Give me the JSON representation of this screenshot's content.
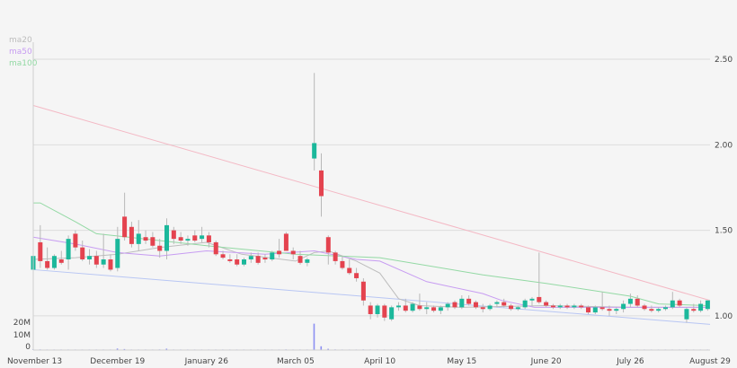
{
  "chart_data": {
    "type": "candlestick",
    "ylim": [
      0.8,
      2.6
    ],
    "y_ticks": [
      "1.00",
      "1.50",
      "2.00",
      "2.50"
    ],
    "y_tick_values": [
      1.0,
      1.5,
      2.0,
      2.5
    ],
    "volume_ticks": [
      "0",
      "10M",
      "20M"
    ],
    "volume_tick_values": [
      0,
      10,
      20
    ],
    "volume_unit": "M",
    "volume_ylim": [
      0,
      25
    ],
    "x_ticks": [
      {
        "label": "November 13",
        "date": "11-13"
      },
      {
        "label": "December 19",
        "date": "12-19"
      },
      {
        "label": "January 26",
        "date": "01-26"
      },
      {
        "label": "March 05",
        "date": "03-05"
      },
      {
        "label": "April 10",
        "date": "04-10"
      },
      {
        "label": "May 15",
        "date": "05-15"
      },
      {
        "label": "June 20",
        "date": "06-20"
      },
      {
        "label": "July 26",
        "date": "07-26"
      },
      {
        "label": "August 29",
        "date": "08-29"
      }
    ],
    "grid": true,
    "legend_position": "top-left",
    "legend": [
      {
        "name": "ma20",
        "color": "#bdbdbd"
      },
      {
        "name": "ma50",
        "color": "#c79cf2"
      },
      {
        "name": "ma100",
        "color": "#93d9a4"
      }
    ],
    "colors": {
      "up": "#1bb89b",
      "down": "#e4434f",
      "wick": "#b8b8b8",
      "volume": "#8c90f2",
      "grid": "#dcdcdc"
    },
    "candle_fields": [
      "date",
      "open",
      "high",
      "low",
      "close",
      "volume_M"
    ],
    "candles": [
      [
        "11-13",
        1.27,
        1.37,
        1.24,
        1.35,
        0.4
      ],
      [
        "11-16",
        1.43,
        1.53,
        1.28,
        1.32,
        0.5
      ],
      [
        "11-19",
        1.32,
        1.4,
        1.27,
        1.28,
        0.3
      ],
      [
        "11-22",
        1.28,
        1.36,
        1.27,
        1.35,
        0.3
      ],
      [
        "11-25",
        1.33,
        1.38,
        1.3,
        1.31,
        0.2
      ],
      [
        "11-28",
        1.33,
        1.47,
        1.27,
        1.45,
        0.4
      ],
      [
        "12-01",
        1.48,
        1.5,
        1.38,
        1.4,
        0.3
      ],
      [
        "12-04",
        1.4,
        1.44,
        1.32,
        1.33,
        0.3
      ],
      [
        "12-07",
        1.33,
        1.39,
        1.3,
        1.35,
        0.2
      ],
      [
        "12-10",
        1.35,
        1.38,
        1.28,
        1.3,
        0.2
      ],
      [
        "12-13",
        1.3,
        1.48,
        1.28,
        1.33,
        0.3
      ],
      [
        "12-16",
        1.33,
        1.36,
        1.26,
        1.27,
        0.3
      ],
      [
        "12-19",
        1.28,
        1.52,
        1.26,
        1.45,
        1.2
      ],
      [
        "12-22",
        1.58,
        1.72,
        1.44,
        1.46,
        0.8
      ],
      [
        "12-25",
        1.52,
        1.55,
        1.4,
        1.42,
        0.4
      ],
      [
        "12-28",
        1.42,
        1.56,
        1.38,
        1.48,
        0.4
      ],
      [
        "12-31",
        1.46,
        1.5,
        1.42,
        1.44,
        0.3
      ],
      [
        "01-03",
        1.46,
        1.49,
        1.4,
        1.41,
        0.3
      ],
      [
        "01-06",
        1.41,
        1.45,
        1.34,
        1.38,
        0.5
      ],
      [
        "01-09",
        1.38,
        1.57,
        1.33,
        1.53,
        1.1
      ],
      [
        "01-12",
        1.5,
        1.52,
        1.42,
        1.45,
        0.4
      ],
      [
        "01-15",
        1.46,
        1.49,
        1.42,
        1.44,
        0.3
      ],
      [
        "01-18",
        1.44,
        1.47,
        1.41,
        1.45,
        0.2
      ],
      [
        "01-21",
        1.47,
        1.5,
        1.43,
        1.44,
        0.3
      ],
      [
        "01-24",
        1.45,
        1.52,
        1.43,
        1.47,
        0.3
      ],
      [
        "01-27",
        1.47,
        1.49,
        1.4,
        1.43,
        0.3
      ],
      [
        "01-30",
        1.43,
        1.44,
        1.35,
        1.36,
        0.3
      ],
      [
        "02-02",
        1.36,
        1.38,
        1.33,
        1.34,
        0.2
      ],
      [
        "02-05",
        1.33,
        1.36,
        1.31,
        1.32,
        0.2
      ],
      [
        "02-08",
        1.33,
        1.36,
        1.29,
        1.3,
        0.3
      ],
      [
        "02-11",
        1.3,
        1.34,
        1.29,
        1.33,
        0.2
      ],
      [
        "02-14",
        1.33,
        1.37,
        1.31,
        1.35,
        0.2
      ],
      [
        "02-17",
        1.35,
        1.37,
        1.3,
        1.31,
        0.2
      ],
      [
        "02-20",
        1.34,
        1.36,
        1.31,
        1.33,
        0.2
      ],
      [
        "02-23",
        1.33,
        1.38,
        1.32,
        1.37,
        0.3
      ],
      [
        "02-26",
        1.38,
        1.45,
        1.34,
        1.36,
        0.3
      ],
      [
        "03-01",
        1.48,
        1.49,
        1.38,
        1.38,
        0.5
      ],
      [
        "03-04",
        1.38,
        1.4,
        1.33,
        1.36,
        0.2
      ],
      [
        "03-07",
        1.35,
        1.38,
        1.3,
        1.31,
        0.2
      ],
      [
        "03-10",
        1.31,
        1.34,
        1.29,
        1.33,
        0.3
      ],
      [
        "03-13",
        1.92,
        2.42,
        1.85,
        2.01,
        21
      ],
      [
        "03-16",
        1.85,
        1.95,
        1.58,
        1.7,
        3
      ],
      [
        "03-19",
        1.46,
        1.47,
        1.3,
        1.37,
        1
      ],
      [
        "03-22",
        1.37,
        1.38,
        1.3,
        1.32,
        0.5
      ],
      [
        "03-25",
        1.32,
        1.35,
        1.27,
        1.28,
        0.4
      ],
      [
        "03-28",
        1.28,
        1.33,
        1.24,
        1.25,
        0.4
      ],
      [
        "03-31",
        1.25,
        1.28,
        1.2,
        1.22,
        0.3
      ],
      [
        "04-03",
        1.2,
        1.22,
        1.06,
        1.09,
        0.5
      ],
      [
        "04-06",
        1.06,
        1.08,
        0.98,
        1.01,
        0.4
      ],
      [
        "04-09",
        1.01,
        1.07,
        0.99,
        1.06,
        0.3
      ],
      [
        "04-12",
        1.06,
        1.07,
        0.97,
        0.99,
        0.4
      ],
      [
        "04-15",
        0.98,
        1.06,
        0.97,
        1.05,
        0.3
      ],
      [
        "04-18",
        1.05,
        1.08,
        1.03,
        1.06,
        0.2
      ],
      [
        "04-21",
        1.06,
        1.1,
        1.02,
        1.03,
        0.2
      ],
      [
        "04-24",
        1.03,
        1.08,
        1.02,
        1.07,
        0.2
      ],
      [
        "04-27",
        1.06,
        1.13,
        1.03,
        1.04,
        0.2
      ],
      [
        "04-30",
        1.04,
        1.08,
        1.01,
        1.05,
        0.2
      ],
      [
        "05-03",
        1.05,
        1.06,
        1.02,
        1.03,
        0.2
      ],
      [
        "05-06",
        1.03,
        1.06,
        1.01,
        1.05,
        0.2
      ],
      [
        "05-09",
        1.05,
        1.08,
        1.03,
        1.07,
        0.2
      ],
      [
        "05-12",
        1.08,
        1.09,
        1.04,
        1.05,
        0.2
      ],
      [
        "05-15",
        1.05,
        1.12,
        1.04,
        1.1,
        0.3
      ],
      [
        "05-18",
        1.1,
        1.12,
        1.06,
        1.07,
        0.2
      ],
      [
        "05-21",
        1.08,
        1.09,
        1.04,
        1.05,
        0.2
      ],
      [
        "05-24",
        1.05,
        1.07,
        1.02,
        1.04,
        0.2
      ],
      [
        "05-27",
        1.04,
        1.07,
        1.03,
        1.06,
        0.2
      ],
      [
        "05-30",
        1.07,
        1.09,
        1.05,
        1.08,
        0.2
      ],
      [
        "06-02",
        1.08,
        1.1,
        1.05,
        1.06,
        0.2
      ],
      [
        "06-05",
        1.06,
        1.07,
        1.03,
        1.04,
        0.2
      ],
      [
        "06-08",
        1.04,
        1.06,
        1.03,
        1.05,
        0.2
      ],
      [
        "06-11",
        1.05,
        1.1,
        1.04,
        1.09,
        0.2
      ],
      [
        "06-14",
        1.09,
        1.11,
        1.06,
        1.1,
        0.3
      ],
      [
        "06-17",
        1.11,
        1.37,
        1.07,
        1.08,
        0.5
      ],
      [
        "06-20",
        1.08,
        1.09,
        1.05,
        1.06,
        0.2
      ],
      [
        "06-23",
        1.06,
        1.07,
        1.04,
        1.05,
        0.2
      ],
      [
        "06-26",
        1.05,
        1.07,
        1.04,
        1.06,
        0.2
      ],
      [
        "06-29",
        1.06,
        1.07,
        1.04,
        1.05,
        0.2
      ],
      [
        "07-02",
        1.05,
        1.07,
        1.04,
        1.06,
        0.2
      ],
      [
        "07-05",
        1.06,
        1.07,
        1.04,
        1.05,
        0.2
      ],
      [
        "07-08",
        1.05,
        1.06,
        1.01,
        1.02,
        0.2
      ],
      [
        "07-11",
        1.02,
        1.06,
        1.01,
        1.05,
        0.2
      ],
      [
        "07-14",
        1.05,
        1.14,
        1.03,
        1.04,
        0.2
      ],
      [
        "07-17",
        1.04,
        1.06,
        1.0,
        1.03,
        0.2
      ],
      [
        "07-20",
        1.03,
        1.05,
        1.01,
        1.04,
        0.2
      ],
      [
        "07-23",
        1.04,
        1.09,
        1.02,
        1.07,
        0.2
      ],
      [
        "07-26",
        1.07,
        1.13,
        1.05,
        1.1,
        0.3
      ],
      [
        "07-29",
        1.1,
        1.12,
        1.05,
        1.06,
        0.2
      ],
      [
        "08-01",
        1.06,
        1.07,
        1.03,
        1.04,
        0.2
      ],
      [
        "08-04",
        1.04,
        1.06,
        1.02,
        1.03,
        0.2
      ],
      [
        "08-07",
        1.03,
        1.05,
        1.02,
        1.04,
        0.2
      ],
      [
        "08-10",
        1.04,
        1.06,
        1.03,
        1.05,
        0.2
      ],
      [
        "08-13",
        1.05,
        1.14,
        1.04,
        1.09,
        0.3
      ],
      [
        "08-16",
        1.09,
        1.1,
        1.05,
        1.06,
        0.2
      ],
      [
        "08-19",
        0.98,
        1.05,
        0.96,
        1.04,
        0.3
      ],
      [
        "08-22",
        1.04,
        1.07,
        1.02,
        1.03,
        0.2
      ],
      [
        "08-25",
        1.03,
        1.09,
        1.02,
        1.07,
        0.2
      ],
      [
        "08-28",
        1.04,
        1.09,
        1.03,
        1.09,
        0.2
      ]
    ],
    "moving_averages": [
      {
        "name": "ma20",
        "points": [
          [
            "11-13",
            1.33
          ],
          [
            "12-01",
            1.34
          ],
          [
            "12-19",
            1.36
          ],
          [
            "01-06",
            1.4
          ],
          [
            "01-26",
            1.43
          ],
          [
            "02-10",
            1.36
          ],
          [
            "03-05",
            1.32
          ],
          [
            "03-13",
            1.37
          ],
          [
            "03-19",
            1.38
          ],
          [
            "03-31",
            1.32
          ],
          [
            "04-10",
            1.25
          ],
          [
            "04-18",
            1.1
          ],
          [
            "04-27",
            1.06
          ],
          [
            "05-15",
            1.05
          ],
          [
            "06-20",
            1.06
          ],
          [
            "07-26",
            1.05
          ],
          [
            "08-28",
            1.05
          ]
        ]
      },
      {
        "name": "ma50",
        "points": [
          [
            "11-13",
            1.46
          ],
          [
            "12-01",
            1.42
          ],
          [
            "12-19",
            1.37
          ],
          [
            "01-06",
            1.35
          ],
          [
            "01-26",
            1.38
          ],
          [
            "02-20",
            1.36
          ],
          [
            "03-13",
            1.38
          ],
          [
            "03-31",
            1.33
          ],
          [
            "04-10",
            1.32
          ],
          [
            "04-30",
            1.2
          ],
          [
            "05-24",
            1.13
          ],
          [
            "06-01",
            1.09
          ],
          [
            "06-15",
            1.05
          ],
          [
            "07-26",
            1.05
          ],
          [
            "08-28",
            1.05
          ]
        ]
      },
      {
        "name": "ma100",
        "points": [
          [
            "11-13",
            1.66
          ],
          [
            "11-16",
            1.66
          ],
          [
            "12-01",
            1.55
          ],
          [
            "12-10",
            1.48
          ],
          [
            "01-26",
            1.41
          ],
          [
            "03-05",
            1.36
          ],
          [
            "04-10",
            1.34
          ],
          [
            "05-24",
            1.24
          ],
          [
            "06-20",
            1.19
          ],
          [
            "07-26",
            1.115
          ],
          [
            "08-07",
            1.07
          ],
          [
            "08-28",
            1.06
          ]
        ]
      }
    ],
    "trendlines": [
      {
        "color": "#f4b8c4",
        "start": [
          "11-13",
          2.23
        ],
        "end": [
          "08-29",
          1.09
        ]
      },
      {
        "color": "#b8c6f4",
        "start": [
          "11-13",
          1.27
        ],
        "end": [
          "08-29",
          0.95
        ]
      }
    ]
  }
}
